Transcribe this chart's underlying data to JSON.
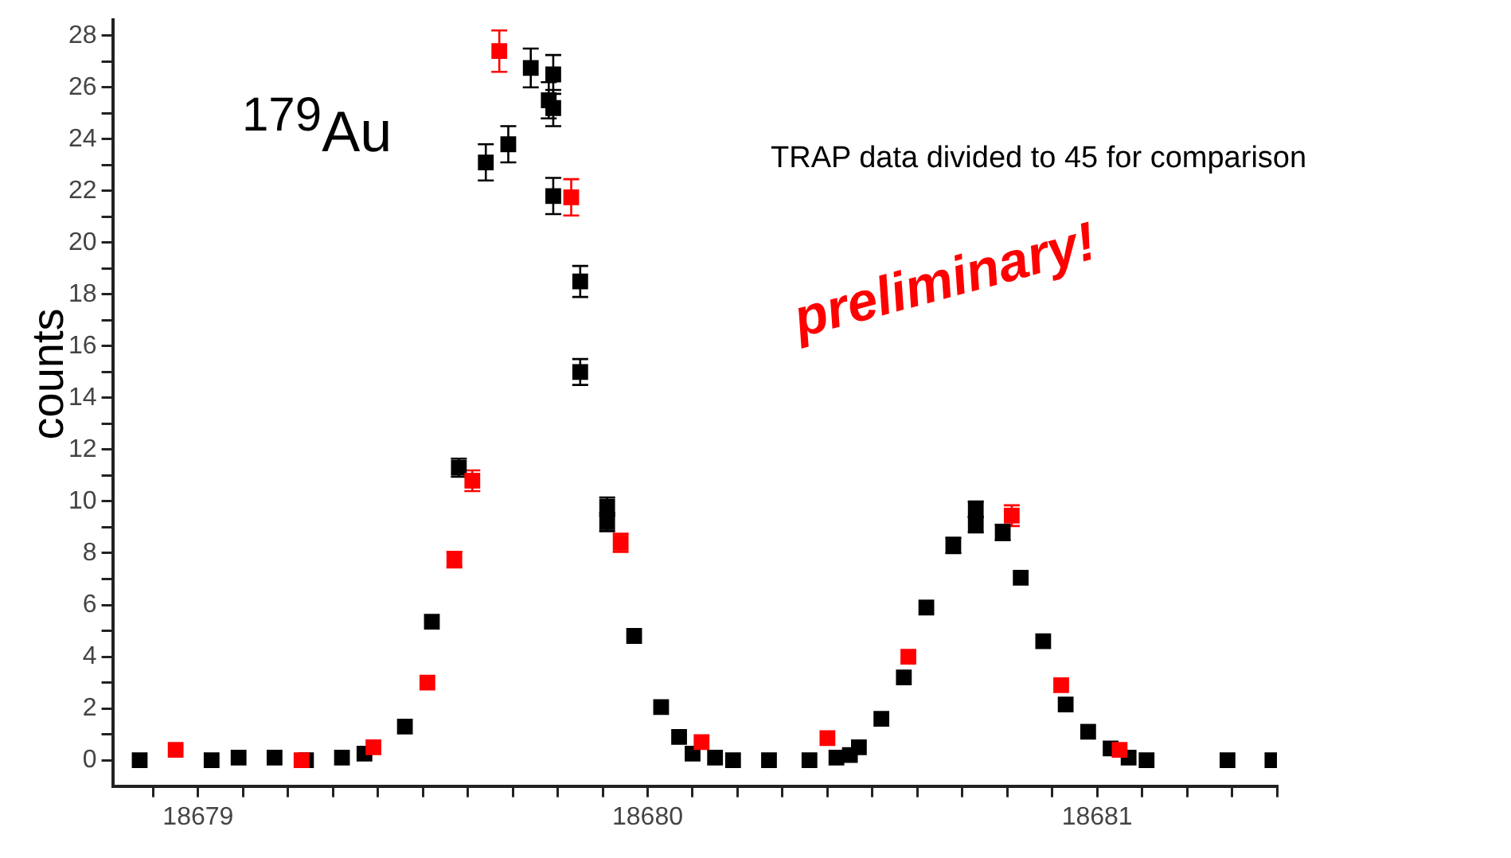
{
  "chart_data": {
    "type": "scatter",
    "ylabel": "counts",
    "annotations": [
      "$^{179}$Au",
      "TRAP data divided to 45 for comparison",
      "preliminary!"
    ],
    "xlim": [
      18678.81,
      18681.4
    ],
    "ylim": [
      -1,
      28.6
    ],
    "xticks": [
      {
        "value": 18678.9,
        "label": null
      },
      {
        "value": 18679,
        "label": "18679"
      },
      {
        "value": 18679.1,
        "label": null
      },
      {
        "value": 18679.2,
        "label": null
      },
      {
        "value": 18679.3,
        "label": null
      },
      {
        "value": 18679.4,
        "label": null
      },
      {
        "value": 18679.5,
        "label": null
      },
      {
        "value": 18679.6,
        "label": null
      },
      {
        "value": 18679.7,
        "label": null
      },
      {
        "value": 18679.8,
        "label": null
      },
      {
        "value": 18679.9,
        "label": null
      },
      {
        "value": 18680,
        "label": "18680"
      },
      {
        "value": 18680.1,
        "label": null
      },
      {
        "value": 18680.2,
        "label": null
      },
      {
        "value": 18680.3,
        "label": null
      },
      {
        "value": 18680.4,
        "label": null
      },
      {
        "value": 18680.5,
        "label": null
      },
      {
        "value": 18680.6,
        "label": null
      },
      {
        "value": 18680.7,
        "label": null
      },
      {
        "value": 18680.8,
        "label": null
      },
      {
        "value": 18680.9,
        "label": null
      },
      {
        "value": 18681,
        "label": "18681"
      },
      {
        "value": 18681.1,
        "label": null
      },
      {
        "value": 18681.2,
        "label": null
      },
      {
        "value": 18681.3,
        "label": null
      },
      {
        "value": 18681.4,
        "label": null
      }
    ],
    "yticks": [
      0,
      {
        "value": 1,
        "label": null
      },
      2,
      {
        "value": 3,
        "label": null
      },
      4,
      {
        "value": 5,
        "label": null
      },
      6,
      {
        "value": 7,
        "label": null
      },
      8,
      {
        "value": 9,
        "label": null
      },
      10,
      {
        "value": 11,
        "label": null
      },
      12,
      {
        "value": 13,
        "label": null
      },
      14,
      {
        "value": 15,
        "label": null
      },
      16,
      {
        "value": 17,
        "label": null
      },
      18,
      {
        "value": 19,
        "label": null
      },
      20,
      {
        "value": 21,
        "label": null
      },
      22,
      {
        "value": 23,
        "label": null
      },
      24,
      {
        "value": 25,
        "label": null
      },
      26,
      {
        "value": 27,
        "label": null
      },
      28
    ],
    "grid": false,
    "legend": false,
    "marker": "square",
    "series": [
      {
        "color": "#000000",
        "x": [
          18678.87,
          18679.03,
          18679.09,
          18679.17,
          18679.24,
          18679.32,
          18679.37,
          18679.46,
          18679.52,
          18679.58,
          18679.64,
          18679.69,
          18679.74,
          18679.79,
          18679.78,
          18679.79,
          18679.79,
          18679.85,
          18679.85,
          18679.91,
          18679.91,
          18679.97,
          18680.03,
          18680.07,
          18680.1,
          18680.15,
          18680.19,
          18680.27,
          18680.36,
          18680.42,
          18680.45,
          18680.47,
          18680.52,
          18680.57,
          18680.62,
          18680.68,
          18680.73,
          18680.73,
          18680.79,
          18680.83,
          18680.88,
          18680.93,
          18680.98,
          18681.03,
          18681.07,
          18681.11,
          18681.29,
          18681.39
        ],
        "values": [
          0,
          0,
          0.1,
          0.1,
          0,
          0.1,
          0.25,
          1.3,
          5.35,
          11.3,
          23.1,
          23.8,
          26.75,
          26.5,
          25.5,
          25.2,
          21.8,
          18.5,
          15,
          9.8,
          9.2,
          4.8,
          2.05,
          0.9,
          0.25,
          0.1,
          0,
          0,
          0,
          0.1,
          0.2,
          0.5,
          1.6,
          3.2,
          5.9,
          8.3,
          9.1,
          9.7,
          8.8,
          7.05,
          4.6,
          2.15,
          1.1,
          0.45,
          0.1,
          0,
          0,
          0
        ],
        "errors": [
          null,
          null,
          null,
          null,
          null,
          null,
          null,
          null,
          null,
          0.35,
          0.7,
          0.7,
          0.75,
          0.75,
          0.7,
          0.7,
          0.7,
          0.6,
          0.5,
          0.35,
          0.35,
          null,
          null,
          null,
          null,
          null,
          null,
          null,
          null,
          null,
          null,
          null,
          null,
          null,
          null,
          0.3,
          0.3,
          0.3,
          0.3,
          null,
          null,
          null,
          null,
          null,
          null,
          null,
          null,
          null
        ]
      },
      {
        "color": "#ff0000",
        "x": [
          18678.95,
          18679.23,
          18679.39,
          18679.51,
          18679.57,
          18679.61,
          18679.67,
          18679.83,
          18679.94,
          18680.12,
          18680.4,
          18680.58,
          18680.81,
          18680.92,
          18681.05
        ],
        "values": [
          0.4,
          0,
          0.5,
          3,
          7.75,
          10.8,
          27.4,
          21.75,
          8.4,
          0.7,
          0.85,
          4,
          9.45,
          2.9,
          0.4
        ],
        "errors": [
          null,
          null,
          null,
          null,
          0.3,
          0.4,
          0.8,
          0.7,
          0.35,
          null,
          null,
          null,
          0.4,
          null,
          null
        ]
      }
    ]
  }
}
